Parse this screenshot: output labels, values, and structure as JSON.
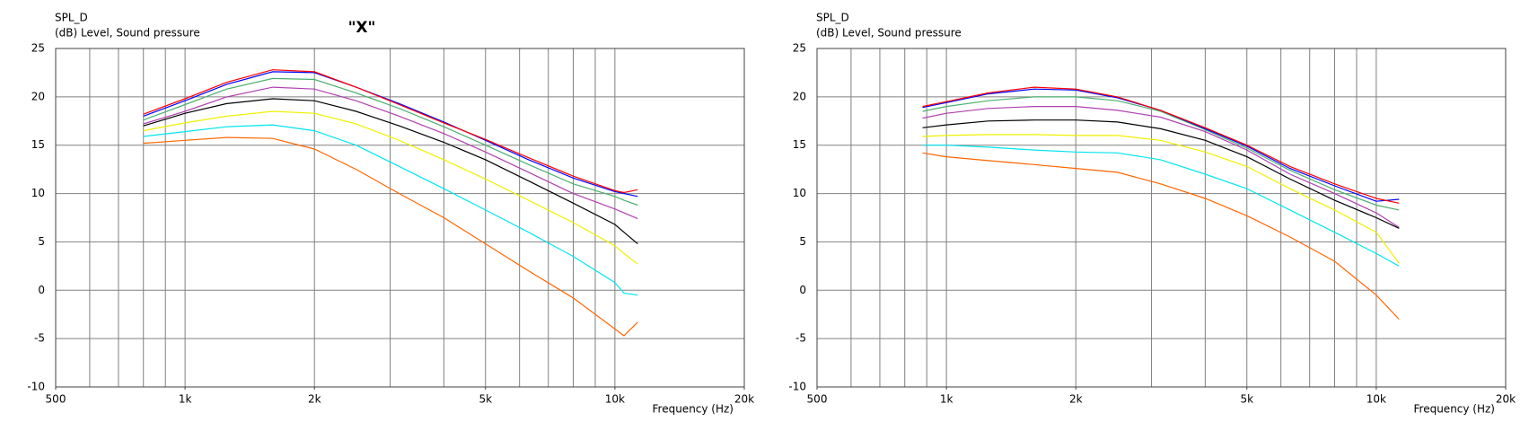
{
  "chart_data": [
    {
      "type": "line",
      "title": "\"X\"",
      "ylabel_top": "SPL_D",
      "ylabel": "(dB)  Level, Sound pressure",
      "xlabel": "Frequency  (Hz)",
      "log_x": true,
      "grid": true,
      "xlim": [
        500,
        20000
      ],
      "ylim": [
        -10,
        25
      ],
      "xticks": [
        {
          "value": 500,
          "label": "500"
        },
        {
          "value": 1000,
          "label": "1k"
        },
        {
          "value": 2000,
          "label": "2k"
        },
        {
          "value": 5000,
          "label": "5k"
        },
        {
          "value": 10000,
          "label": "10k"
        },
        {
          "value": 20000,
          "label": "20k"
        }
      ],
      "xgrid": [
        600,
        700,
        800,
        900,
        1000,
        2000,
        3000,
        4000,
        5000,
        6000,
        7000,
        8000,
        9000,
        10000
      ],
      "yticks": [
        -10,
        -5,
        0,
        5,
        10,
        15,
        20,
        25
      ],
      "x": [
        800,
        1000,
        1250,
        1600,
        2000,
        2500,
        3150,
        4000,
        5000,
        6300,
        8000,
        10000,
        10500,
        11300
      ],
      "series": [
        {
          "color": "#ff6600",
          "values": [
            15.2,
            15.5,
            15.8,
            15.7,
            14.6,
            12.5,
            10.0,
            7.5,
            4.8,
            2.0,
            -0.8,
            -4.0,
            -4.7,
            -3.3
          ]
        },
        {
          "color": "#00e5f0",
          "values": [
            15.9,
            16.4,
            16.9,
            17.1,
            16.5,
            15.0,
            12.8,
            10.5,
            8.3,
            6.0,
            3.5,
            0.8,
            -0.3,
            -0.5
          ]
        },
        {
          "color": "#f0f000",
          "values": [
            16.5,
            17.3,
            18.0,
            18.5,
            18.3,
            17.2,
            15.5,
            13.5,
            11.5,
            9.3,
            7.0,
            4.6,
            3.8,
            2.7
          ]
        },
        {
          "color": "#000000",
          "values": [
            17.0,
            18.3,
            19.3,
            19.8,
            19.6,
            18.5,
            17.0,
            15.3,
            13.5,
            11.3,
            9.0,
            6.8,
            6.0,
            4.8
          ]
        },
        {
          "color": "#b040b0",
          "values": [
            17.2,
            18.5,
            20.0,
            21.0,
            20.8,
            19.6,
            18.0,
            16.2,
            14.3,
            12.2,
            10.0,
            8.4,
            8.0,
            7.4
          ]
        },
        {
          "color": "#4caf70",
          "values": [
            17.6,
            19.2,
            20.8,
            21.9,
            21.8,
            20.4,
            18.8,
            16.9,
            15.0,
            13.0,
            11.0,
            9.7,
            9.3,
            8.8
          ]
        },
        {
          "color": "#0000ff",
          "values": [
            18.0,
            19.6,
            21.3,
            22.6,
            22.5,
            21.0,
            19.3,
            17.4,
            15.5,
            13.5,
            11.6,
            10.2,
            10.0,
            9.7
          ]
        },
        {
          "color": "#ff0000",
          "values": [
            18.2,
            19.8,
            21.5,
            22.8,
            22.6,
            21.0,
            19.2,
            17.3,
            15.6,
            13.7,
            11.8,
            10.3,
            10.1,
            10.4
          ]
        }
      ]
    },
    {
      "type": "line",
      "ylabel_top": "SPL_D",
      "ylabel": "(dB)  Level, Sound pressure",
      "xlabel": "Frequency  (Hz)",
      "log_x": true,
      "grid": true,
      "xlim": [
        500,
        20000
      ],
      "ylim": [
        -10,
        25
      ],
      "xticks": [
        {
          "value": 500,
          "label": "500"
        },
        {
          "value": 1000,
          "label": "1k"
        },
        {
          "value": 2000,
          "label": "2k"
        },
        {
          "value": 5000,
          "label": "5k"
        },
        {
          "value": 10000,
          "label": "10k"
        },
        {
          "value": 20000,
          "label": "20k"
        }
      ],
      "xgrid": [
        600,
        700,
        800,
        900,
        1000,
        2000,
        3000,
        4000,
        5000,
        6000,
        7000,
        8000,
        9000,
        10000
      ],
      "yticks": [
        -10,
        -5,
        0,
        5,
        10,
        15,
        20,
        25
      ],
      "x": [
        880,
        1000,
        1250,
        1600,
        2000,
        2500,
        3150,
        4000,
        5000,
        6300,
        8000,
        10000,
        11300
      ],
      "series": [
        {
          "color": "#ff6600",
          "values": [
            14.2,
            13.8,
            13.4,
            13.0,
            12.6,
            12.2,
            11.0,
            9.5,
            7.7,
            5.5,
            3.0,
            -0.5,
            -3.0
          ]
        },
        {
          "color": "#00e5f0",
          "values": [
            15.0,
            15.0,
            14.8,
            14.5,
            14.3,
            14.2,
            13.5,
            12.0,
            10.5,
            8.3,
            6.0,
            3.8,
            2.5
          ]
        },
        {
          "color": "#f0f000",
          "values": [
            15.9,
            16.0,
            16.1,
            16.1,
            16.0,
            16.0,
            15.5,
            14.3,
            12.8,
            10.5,
            8.3,
            6.0,
            2.8
          ]
        },
        {
          "color": "#000000",
          "values": [
            16.8,
            17.1,
            17.5,
            17.6,
            17.6,
            17.4,
            16.7,
            15.5,
            13.8,
            11.5,
            9.3,
            7.5,
            6.4
          ]
        },
        {
          "color": "#b040b0",
          "values": [
            17.8,
            18.3,
            18.8,
            19.0,
            19.0,
            18.6,
            17.9,
            16.4,
            14.5,
            12.0,
            10.0,
            8.0,
            6.5
          ]
        },
        {
          "color": "#4caf70",
          "values": [
            18.5,
            19.0,
            19.6,
            20.0,
            20.0,
            19.6,
            18.5,
            16.6,
            14.7,
            12.4,
            10.4,
            8.8,
            8.3
          ]
        },
        {
          "color": "#0000ff",
          "values": [
            18.9,
            19.4,
            20.3,
            20.8,
            20.7,
            19.9,
            18.6,
            16.7,
            14.9,
            12.6,
            10.8,
            9.2,
            9.4
          ]
        },
        {
          "color": "#ff0000",
          "values": [
            19.0,
            19.5,
            20.4,
            21.0,
            20.8,
            20.0,
            18.6,
            16.8,
            15.0,
            12.8,
            11.0,
            9.5,
            9.0
          ]
        }
      ]
    }
  ]
}
